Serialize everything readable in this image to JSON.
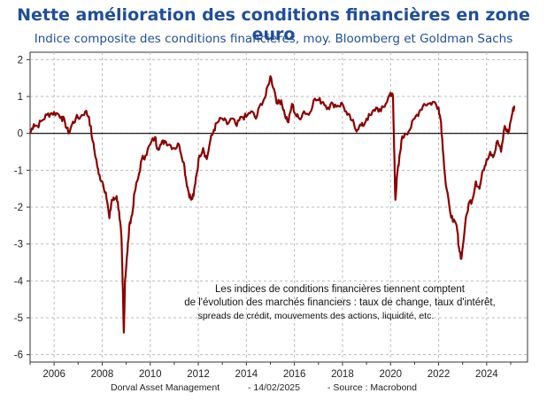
{
  "chart_data": {
    "type": "line",
    "title": "Nette amélioration des conditions financières en zone euro",
    "subtitle": "Indice composite des conditions financières, moy. Bloomberg et Goldman Sachs",
    "xlim": [
      2005.0,
      2025.7
    ],
    "ylim": [
      -6.2,
      2.2
    ],
    "x_ticks": [
      2006,
      2008,
      2010,
      2012,
      2014,
      2016,
      2018,
      2020,
      2022,
      2024
    ],
    "y_ticks": [
      2,
      1,
      0,
      -1,
      -2,
      -3,
      -4,
      -5,
      -6
    ],
    "grid": true,
    "zero_line": true,
    "line_color": "#8B0000",
    "annotation": [
      "Les indices de conditions financières tiennent comptent",
      "de l'évolution des marchés financiers : taux de change, taux d'intérêt,",
      "spreads de crédit, mouvements des actions, liquidité, etc."
    ],
    "series": [
      {
        "x": [
          2005.0,
          2005.15,
          2005.3,
          2005.5,
          2005.7,
          2005.9,
          2006.1,
          2006.3,
          2006.45,
          2006.6,
          2006.75,
          2006.9,
          2007.1,
          2007.3,
          2007.45,
          2007.6,
          2007.75,
          2007.85,
          2008.0,
          2008.15,
          2008.3,
          2008.4,
          2008.5,
          2008.6,
          2008.7,
          2008.8,
          2008.85,
          2008.9,
          2008.95,
          2009.05,
          2009.15,
          2009.25,
          2009.35,
          2009.5,
          2009.65,
          2009.8,
          2010.0,
          2010.2,
          2010.3,
          2010.45,
          2010.6,
          2010.8,
          2011.0,
          2011.2,
          2011.4,
          2011.5,
          2011.6,
          2011.7,
          2011.8,
          2011.9,
          2012.05,
          2012.2,
          2012.35,
          2012.5,
          2012.65,
          2012.8,
          2013.0,
          2013.2,
          2013.4,
          2013.6,
          2013.8,
          2014.0,
          2014.2,
          2014.4,
          2014.6,
          2014.8,
          2015.0,
          2015.15,
          2015.3,
          2015.45,
          2015.6,
          2015.75,
          2015.9,
          2016.05,
          2016.2,
          2016.4,
          2016.6,
          2016.8,
          2017.0,
          2017.2,
          2017.4,
          2017.6,
          2017.8,
          2018.0,
          2018.2,
          2018.4,
          2018.55,
          2018.7,
          2018.85,
          2019.0,
          2019.2,
          2019.4,
          2019.6,
          2019.8,
          2020.0,
          2020.1,
          2020.15,
          2020.2,
          2020.28,
          2020.35,
          2020.45,
          2020.6,
          2020.8,
          2021.0,
          2021.2,
          2021.4,
          2021.6,
          2021.8,
          2022.0,
          2022.1,
          2022.2,
          2022.3,
          2022.45,
          2022.6,
          2022.75,
          2022.85,
          2022.95,
          2023.1,
          2023.25,
          2023.4,
          2023.55,
          2023.7,
          2023.85,
          2024.0,
          2024.15,
          2024.3,
          2024.45,
          2024.6,
          2024.75,
          2024.9,
          2025.05,
          2025.15
        ],
        "y": [
          0.0,
          0.25,
          0.2,
          0.35,
          0.5,
          0.55,
          0.55,
          0.45,
          0.3,
          0.0,
          0.25,
          0.4,
          0.45,
          0.6,
          0.45,
          -0.2,
          -0.7,
          -1.1,
          -1.3,
          -1.6,
          -2.3,
          -1.8,
          -1.8,
          -1.7,
          -2.1,
          -2.8,
          -4.0,
          -5.4,
          -4.0,
          -3.2,
          -2.4,
          -2.2,
          -1.6,
          -1.2,
          -0.7,
          -0.6,
          -0.3,
          -0.1,
          -0.4,
          -0.3,
          -0.2,
          -0.3,
          -0.4,
          -0.3,
          -0.8,
          -1.3,
          -1.6,
          -1.8,
          -1.7,
          -1.2,
          -0.6,
          -0.4,
          -0.7,
          -0.2,
          0.1,
          0.3,
          0.4,
          0.25,
          0.4,
          0.2,
          0.45,
          0.45,
          0.6,
          0.4,
          0.8,
          1.0,
          1.55,
          1.2,
          0.8,
          0.9,
          0.5,
          0.3,
          0.8,
          0.5,
          0.4,
          0.6,
          0.5,
          0.9,
          0.9,
          0.85,
          0.7,
          0.8,
          0.75,
          0.8,
          0.5,
          0.35,
          0.1,
          0.2,
          0.2,
          0.4,
          0.5,
          0.7,
          0.6,
          0.8,
          1.1,
          1.0,
          -0.4,
          -1.8,
          -1.1,
          -0.8,
          -0.2,
          0.0,
          0.1,
          0.4,
          0.6,
          0.8,
          0.8,
          0.85,
          0.7,
          0.3,
          -0.6,
          -1.4,
          -2.0,
          -2.4,
          -2.5,
          -3.1,
          -3.4,
          -2.5,
          -1.9,
          -1.8,
          -1.3,
          -1.5,
          -1.0,
          -0.7,
          -0.5,
          -0.6,
          -0.2,
          -0.5,
          0.2,
          0.0,
          0.5,
          0.75
        ]
      }
    ]
  },
  "footer": {
    "source_left": "Dorval Asset Management",
    "date": "- 14/02/2025",
    "source_right": "- Source : Macrobond"
  }
}
